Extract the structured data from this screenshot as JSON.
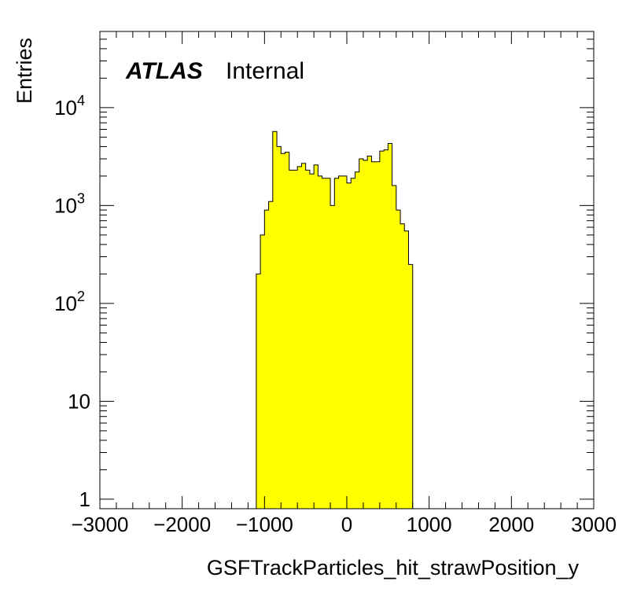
{
  "chart_data": {
    "type": "histogram",
    "title": "",
    "xlabel": "GSFTrackParticles_hit_strawPosition_y",
    "ylabel": "Entries",
    "xlim": [
      -3000,
      3000
    ],
    "ylim": [
      0.8,
      60000
    ],
    "log_y": true,
    "grid": false,
    "fill_color": "#ffff00",
    "line_color": "#000000",
    "bin_width": 50,
    "bin_edges_start": -1100,
    "values": [
      200,
      500,
      900,
      1100,
      5700,
      4000,
      3400,
      3500,
      2300,
      2300,
      2500,
      2700,
      2300,
      2100,
      2600,
      2000,
      1900,
      1900,
      1000,
      1900,
      2000,
      2000,
      1700,
      1900,
      2200,
      3000,
      2900,
      3200,
      2800,
      2800,
      3600,
      3700,
      4300,
      1600,
      900,
      650,
      550,
      250
    ],
    "x_ticks": [
      "−3000",
      "−2000",
      "−1000",
      "0",
      "1000",
      "2000",
      "3000"
    ],
    "x_tick_values": [
      -3000,
      -2000,
      -1000,
      0,
      1000,
      2000,
      3000
    ],
    "y_ticks": [
      {
        "value": 1,
        "base": "1",
        "exp": ""
      },
      {
        "value": 10,
        "base": "10",
        "exp": ""
      },
      {
        "value": 100,
        "base": "10",
        "exp": "2"
      },
      {
        "value": 1000,
        "base": "10",
        "exp": "3"
      },
      {
        "value": 10000,
        "base": "10",
        "exp": "4"
      }
    ],
    "label_atlas": "ATLAS",
    "label_internal": "Internal"
  }
}
